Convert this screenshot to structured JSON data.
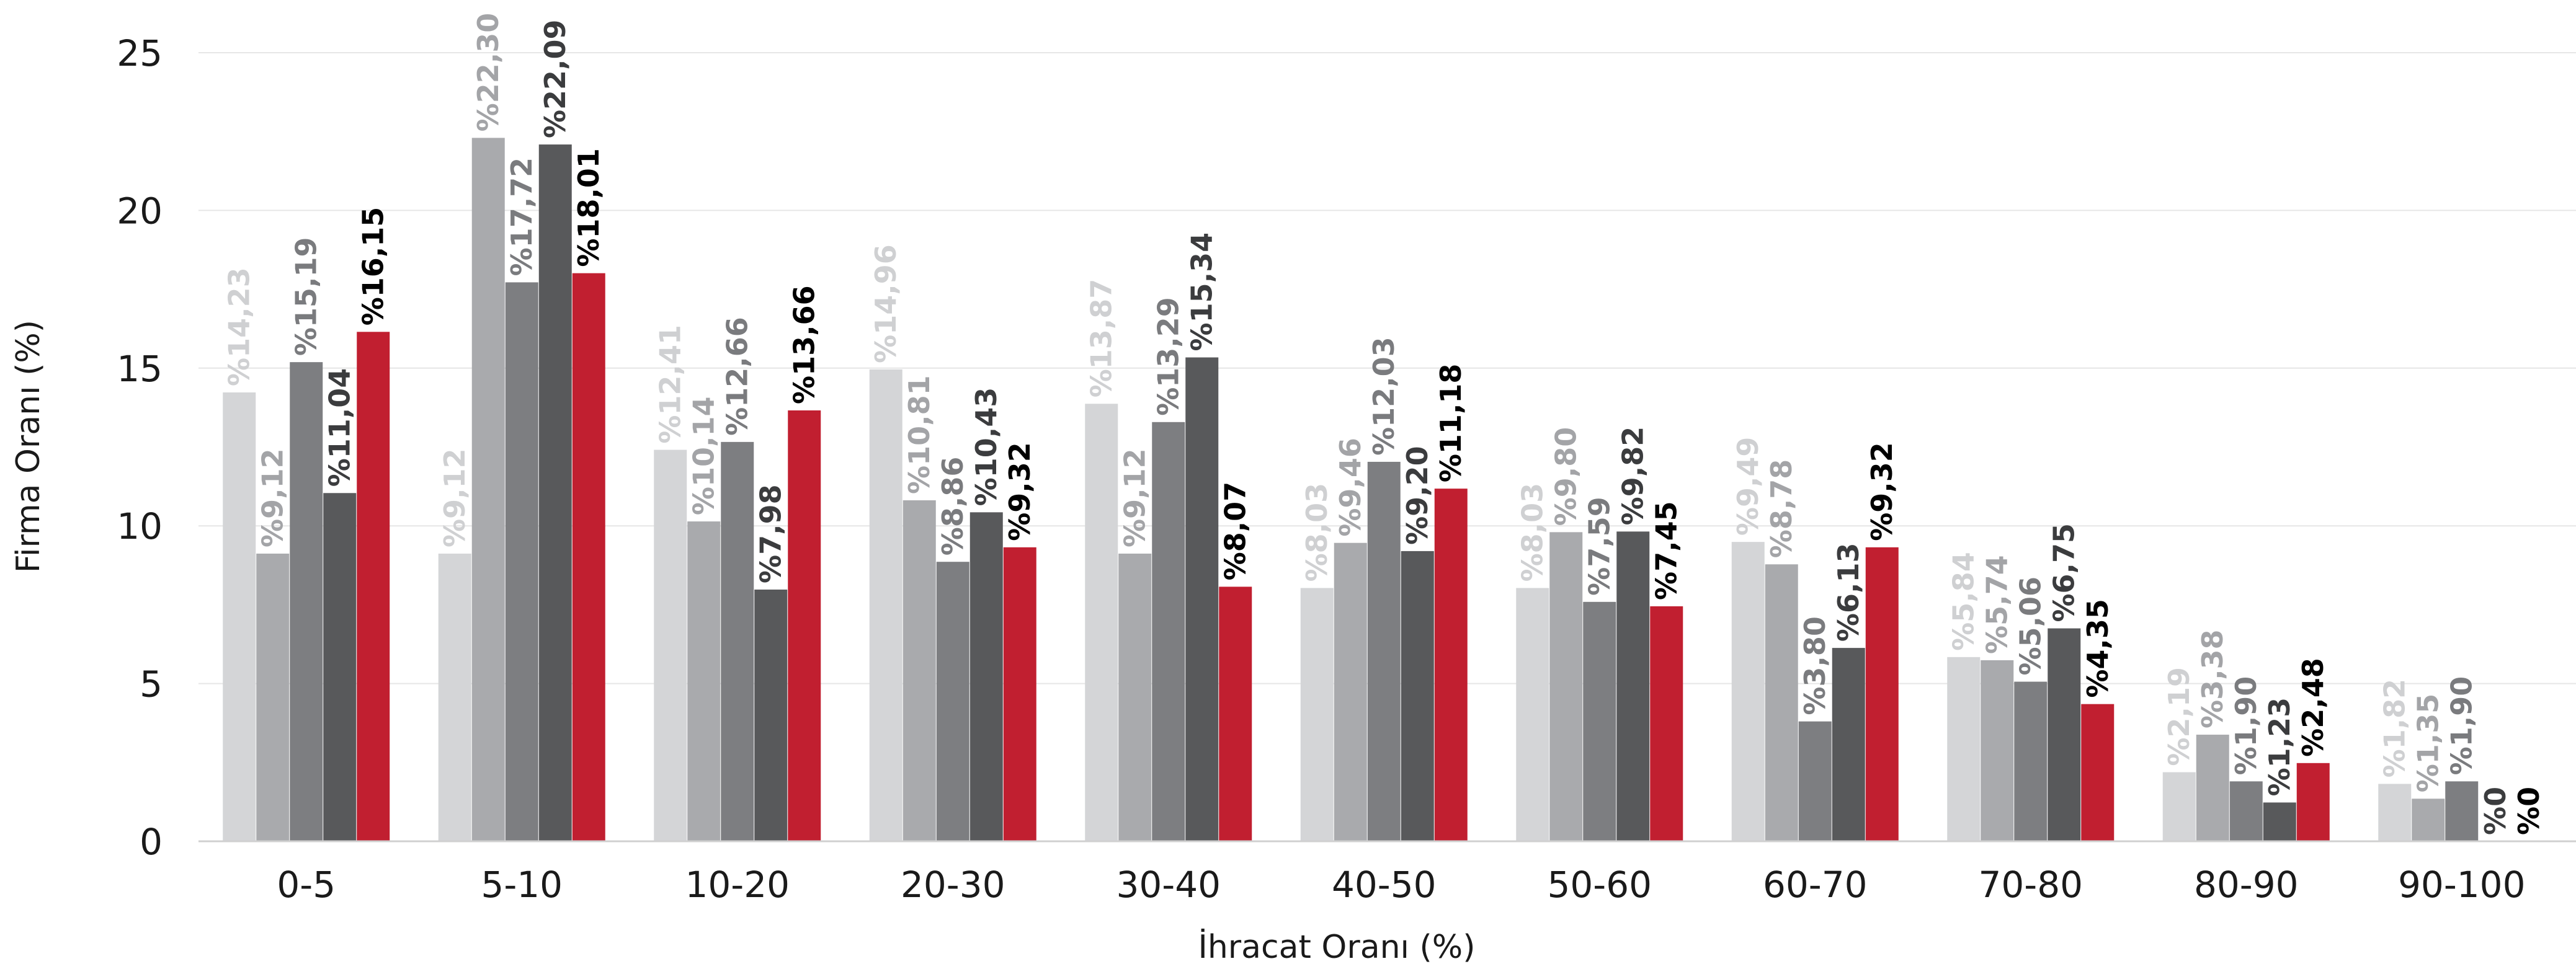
{
  "chart_data": {
    "type": "bar",
    "xlabel": "İhracat Oranı (%)",
    "ylabel": "Firma Oranı (%)",
    "ylim": [
      0,
      25
    ],
    "yticks": [
      0,
      5,
      10,
      15,
      20,
      25
    ],
    "grid": true,
    "legend": "none",
    "categories": [
      "0-5",
      "5-10",
      "10-20",
      "20-30",
      "30-40",
      "40-50",
      "50-60",
      "60-70",
      "70-80",
      "80-90",
      "90-100"
    ],
    "series": [
      {
        "color": "#d4d5d7",
        "label_color": "#cfd0d2",
        "values": [
          14.23,
          9.12,
          12.41,
          14.96,
          13.87,
          8.03,
          8.03,
          9.49,
          5.84,
          2.19,
          1.82
        ],
        "labels": [
          "%14,23",
          "%9,12",
          "%12,41",
          "%14,96",
          "%13,87",
          "%8,03",
          "%8,03",
          "%9,49",
          "%5,84",
          "%2,19",
          "%1,82"
        ]
      },
      {
        "color": "#a9aaad",
        "label_color": "#a3a4a7",
        "values": [
          9.12,
          22.3,
          10.14,
          10.81,
          9.12,
          9.46,
          9.8,
          8.78,
          5.74,
          3.38,
          1.35
        ],
        "labels": [
          "%9,12",
          "%22,30",
          "%10,14",
          "%10,81",
          "%9,12",
          "%9,46",
          "%9,80",
          "%8,78",
          "%5,74",
          "%3,38",
          "%1,35"
        ]
      },
      {
        "color": "#7d7e81",
        "label_color": "#7a7b7e",
        "values": [
          15.19,
          17.72,
          12.66,
          8.86,
          13.29,
          12.03,
          7.59,
          3.8,
          5.06,
          1.9,
          1.9
        ],
        "labels": [
          "%15,19",
          "%17,72",
          "%12,66",
          "%8,86",
          "%13,29",
          "%12,03",
          "%7,59",
          "%3,80",
          "%5,06",
          "%1,90",
          "%1,90"
        ]
      },
      {
        "color": "#58595b",
        "label_color": "#3b3c3e",
        "values": [
          11.04,
          22.09,
          7.98,
          10.43,
          15.34,
          9.2,
          9.82,
          6.13,
          6.75,
          1.23,
          0
        ],
        "labels": [
          "%11,04",
          "%22,09",
          "%7,98",
          "%10,43",
          "%15,34",
          "%9,20",
          "%9,82",
          "%6,13",
          "%6,75",
          "%1,23",
          "%0"
        ]
      },
      {
        "color": "#c11f30",
        "label_color": "#000000",
        "values": [
          16.15,
          18.01,
          13.66,
          9.32,
          8.07,
          11.18,
          7.45,
          9.32,
          4.35,
          2.48,
          0
        ],
        "labels": [
          "%16,15",
          "%18,01",
          "%13,66",
          "%9,32",
          "%8,07",
          "%11,18",
          "%7,45",
          "%9,32",
          "%4,35",
          "%2,48",
          "%0"
        ]
      }
    ]
  }
}
